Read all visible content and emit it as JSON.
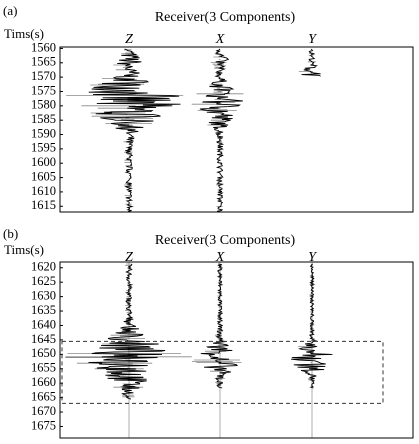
{
  "chart_data": [
    {
      "type": "seismogram",
      "panel_label": "(a)",
      "title": "Receiver(3 Components)",
      "y_label": "Tims(s)",
      "categories": [
        "Z",
        "X",
        "Y"
      ],
      "ylim": [
        1559.5,
        1617
      ],
      "y_inverted": true,
      "yticks": [
        1560,
        1565,
        1570,
        1575,
        1580,
        1585,
        1590,
        1595,
        1600,
        1605,
        1610,
        1615
      ]
    },
    {
      "type": "seismogram",
      "panel_label": "(b)",
      "title": "Receiver(3 Components)",
      "y_label": "Tims(s)",
      "categories": [
        "Z",
        "X",
        "Y"
      ],
      "ylim": [
        1618,
        1679
      ],
      "y_inverted": true,
      "yticks": [
        1620,
        1625,
        1630,
        1635,
        1640,
        1645,
        1650,
        1655,
        1660,
        1665,
        1670,
        1675
      ],
      "highlight_range": [
        1645.5,
        1667
      ]
    }
  ]
}
